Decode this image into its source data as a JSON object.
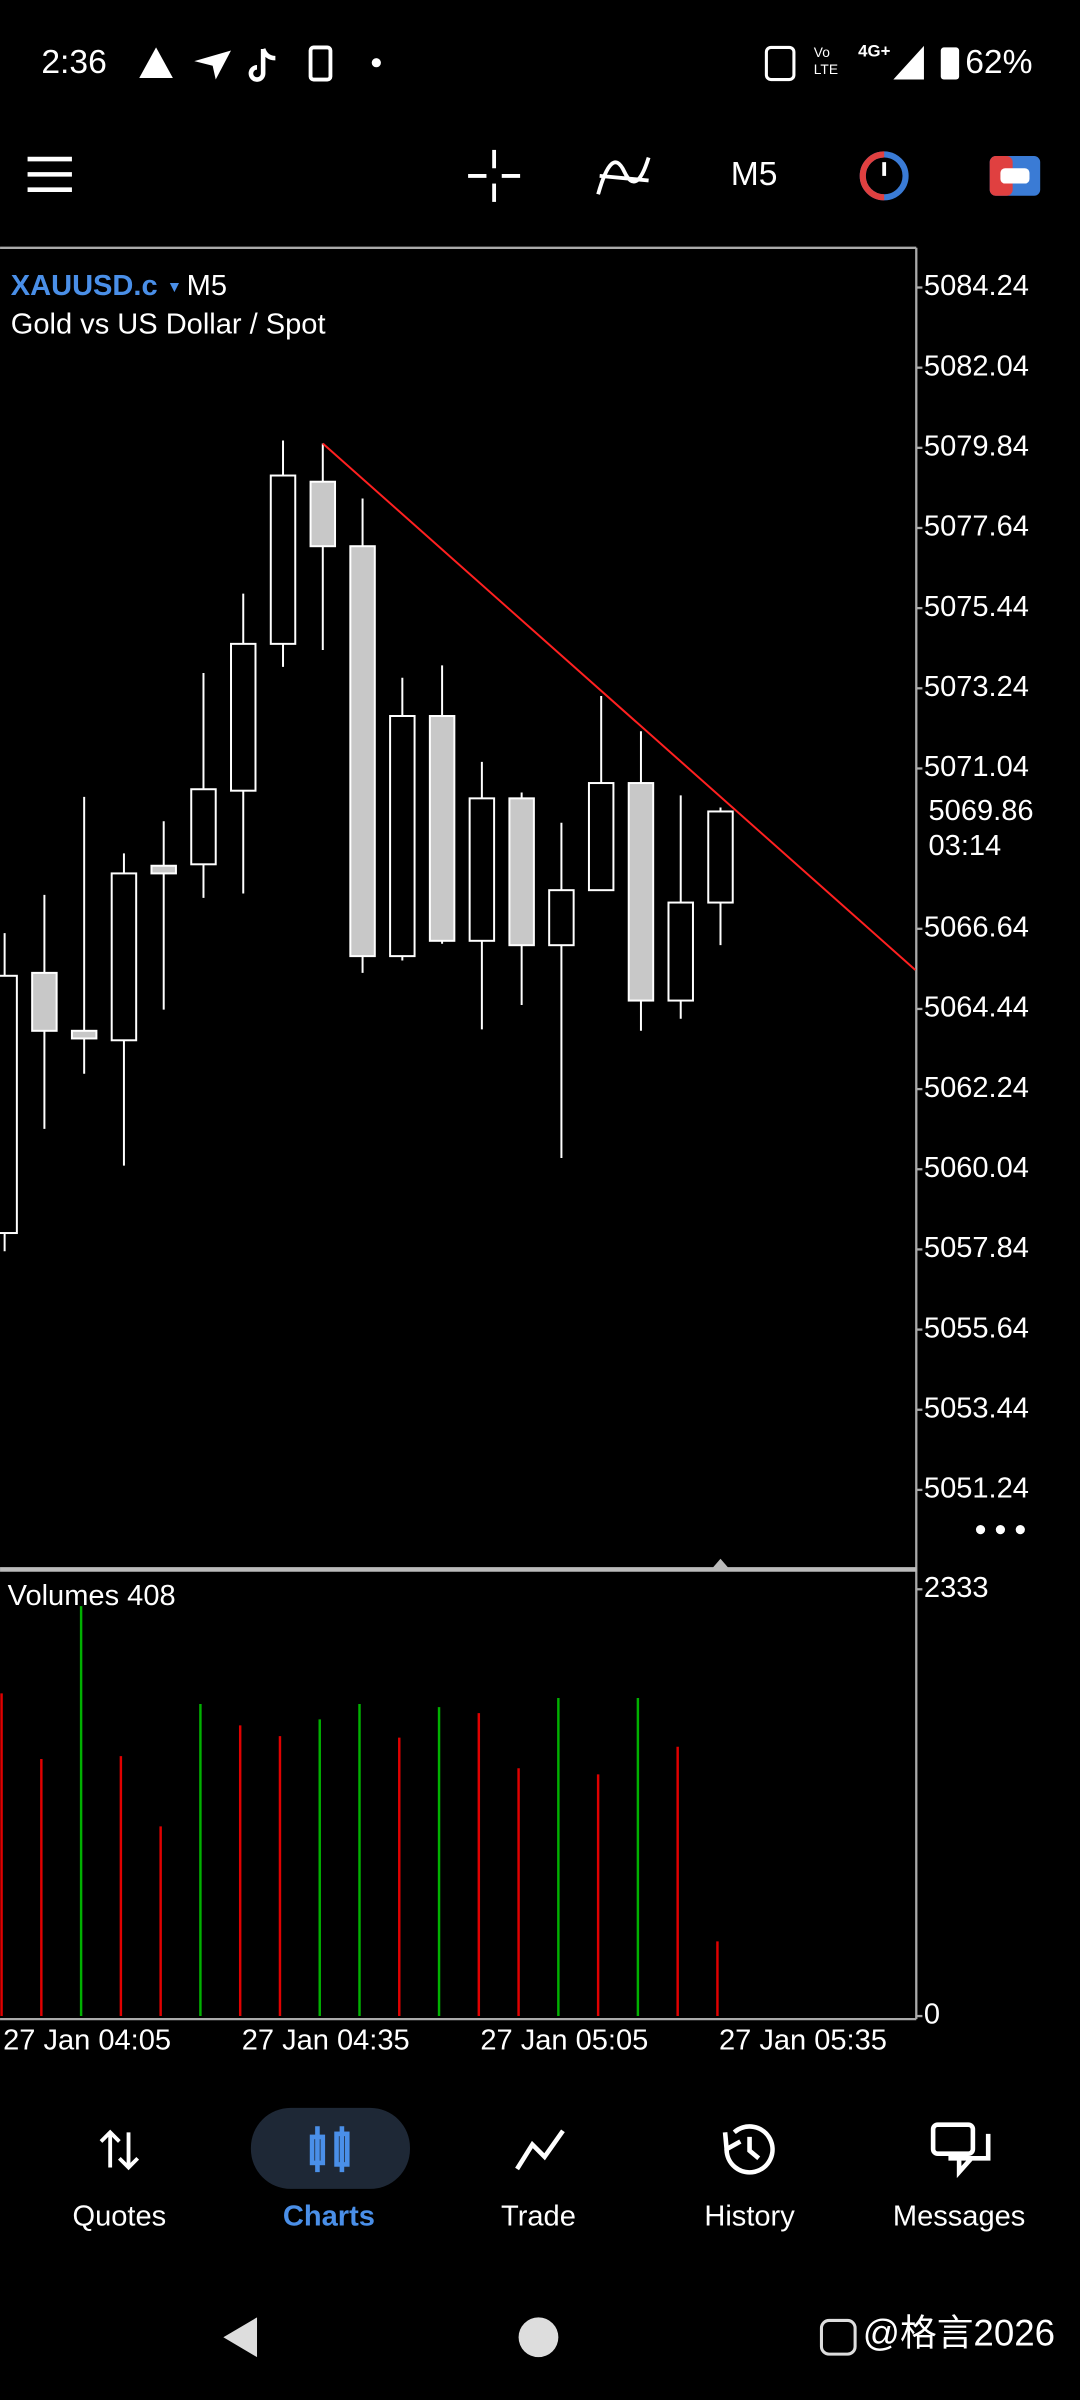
{
  "status_bar": {
    "time": "2:36",
    "network": [
      "Vo",
      "LTE",
      "4G+"
    ],
    "battery": "62%"
  },
  "toolbar": {
    "timeframe": "M5"
  },
  "chart_data": {
    "type": "candlestick",
    "symbol": "XAUUSD.c",
    "timeframe": "M5",
    "subtitle": "Gold vs US Dollar / Spot",
    "categories": [
      "27 Jan 04:05",
      null,
      null,
      null,
      null,
      null,
      "27 Jan 04:35",
      null,
      null,
      null,
      null,
      null,
      "27 Jan 05:05",
      null,
      null,
      null,
      null,
      null,
      "27 Jan 05:35"
    ],
    "open": [
      5058.29,
      5065.43,
      5063.84,
      5063.58,
      5068.37,
      5068.41,
      5070.43,
      5074.46,
      5078.91,
      5077.14,
      5065.89,
      5072.48,
      5066.31,
      5070.22,
      5066.19,
      5067.7,
      5070.64,
      5064.67,
      5067.36
    ],
    "high": [
      5066.52,
      5067.57,
      5070.26,
      5068.71,
      5069.59,
      5073.66,
      5075.84,
      5080.04,
      5079.96,
      5078.45,
      5073.53,
      5073.87,
      5071.22,
      5070.38,
      5069.55,
      5073.03,
      5072.06,
      5070.3,
      5069.97
    ],
    "low": [
      5057.79,
      5061.15,
      5062.66,
      5060.14,
      5064.42,
      5067.49,
      5067.61,
      5073.83,
      5074.29,
      5065.43,
      5065.77,
      5066.23,
      5063.88,
      5064.55,
      5060.35,
      5067.7,
      5063.84,
      5064.17,
      5066.19
    ],
    "close": [
      5065.35,
      5063.84,
      5063.63,
      5068.16,
      5068.16,
      5070.47,
      5074.46,
      5079.08,
      5077.14,
      5065.89,
      5072.48,
      5066.31,
      5070.22,
      5066.19,
      5067.7,
      5070.64,
      5064.67,
      5067.36,
      5069.86
    ],
    "bull_color": "#000000",
    "bear_color": "#c8c8c8",
    "outline_color": "#ffffff",
    "ylim": [
      5049.1,
      5085.33
    ],
    "yticks": [
      5084.24,
      5082.04,
      5079.84,
      5077.64,
      5075.44,
      5073.24,
      5071.04,
      5066.64,
      5064.44,
      5062.24,
      5060.04,
      5057.84,
      5055.64,
      5053.44,
      5051.24
    ],
    "grid": false,
    "current_price": 5069.86,
    "countdown": "03:14",
    "trendline": {
      "x": [
        8,
        22.9
      ],
      "y": [
        5079.96,
        5065.51
      ],
      "color": "#ff2020"
    },
    "volume": {
      "name": "Volumes",
      "values": [
        1764,
        1405,
        2241,
        1421,
        1037,
        1706,
        1589,
        1530,
        1622,
        1706,
        1522,
        1689,
        1656,
        1355,
        1739,
        1321,
        1739,
        1472,
        408
      ],
      "colors": [
        "#e00000",
        "#e00000",
        "#00b000",
        "#e00000",
        "#e00000",
        "#00b000",
        "#e00000",
        "#e00000",
        "#00b000",
        "#00b000",
        "#e00000",
        "#00b000",
        "#e00000",
        "#e00000",
        "#00b000",
        "#e00000",
        "#00b000",
        "#e00000",
        "#e00000"
      ],
      "ylim": [
        0,
        2333
      ],
      "yticks": [
        0,
        2333
      ]
    }
  },
  "nav": {
    "items": [
      "Quotes",
      "Charts",
      "Trade",
      "History",
      "Messages"
    ],
    "active": 1
  },
  "watermark": "@格言2026"
}
